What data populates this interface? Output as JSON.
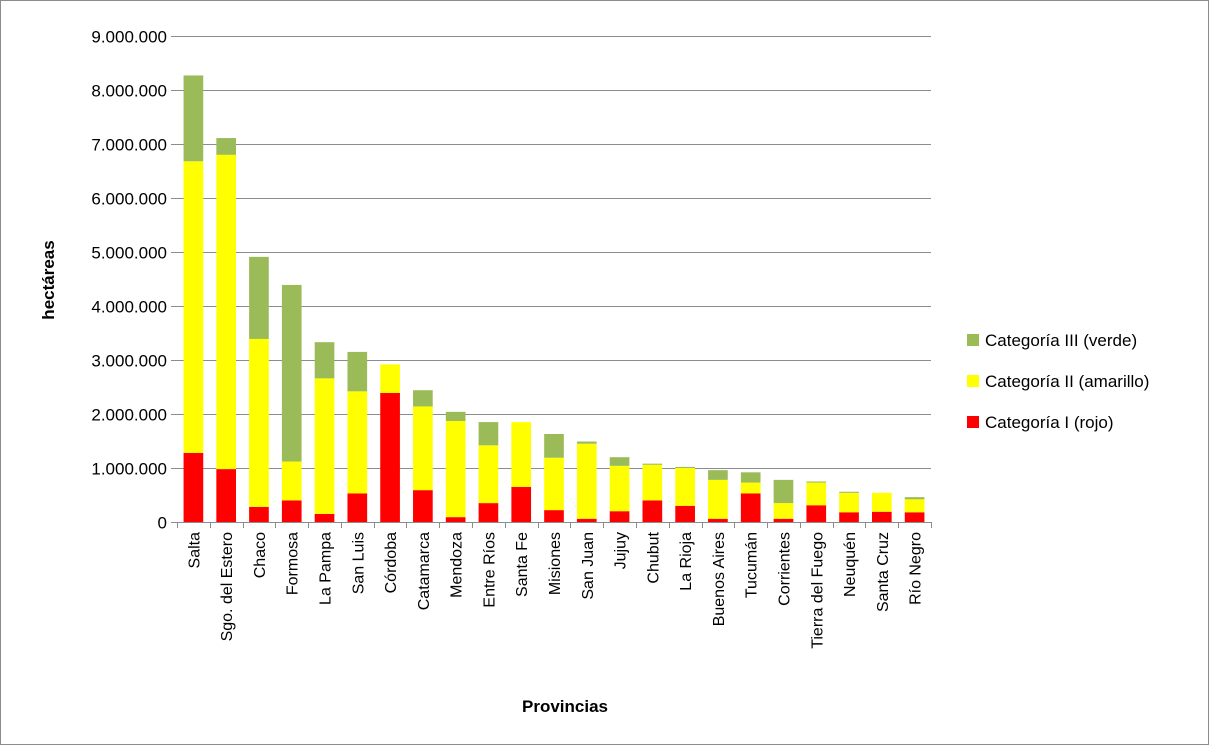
{
  "chart_data": {
    "type": "bar",
    "stacked": true,
    "title": "",
    "xlabel": "Provincias",
    "ylabel": "hectáreas",
    "ylim": [
      0,
      9000000
    ],
    "y_ticks": [
      0,
      1000000,
      2000000,
      3000000,
      4000000,
      5000000,
      6000000,
      7000000,
      8000000,
      9000000
    ],
    "y_tick_labels": [
      "0",
      "1.000.000",
      "2.000.000",
      "3.000.000",
      "4.000.000",
      "5.000.000",
      "6.000.000",
      "7.000.000",
      "8.000.000",
      "9.000.000"
    ],
    "grid": true,
    "legend_position": "right",
    "categories": [
      "Salta",
      "Sgo. del Estero",
      "Chaco",
      "Formosa",
      "La Pampa",
      "San Luis",
      "Córdoba",
      "Catamarca",
      "Mendoza",
      "Entre Ríos",
      "Santa Fe",
      "Misiones",
      "San Juan",
      "Jujuy",
      "Chubut",
      "La Rioja",
      "Buenos Aires",
      "Tucumán",
      "Corrientes",
      "Tierra del Fuego",
      "Neuquén",
      "Santa Cruz",
      "Río Negro"
    ],
    "series": [
      {
        "name": "Categoría I (rojo)",
        "color": "#ff0000",
        "values": [
          1280000,
          980000,
          280000,
          400000,
          150000,
          530000,
          2390000,
          590000,
          90000,
          350000,
          650000,
          220000,
          60000,
          200000,
          400000,
          300000,
          60000,
          530000,
          60000,
          310000,
          180000,
          190000,
          180000
        ]
      },
      {
        "name": "Categoría II (amarillo)",
        "color": "#ffff00",
        "values": [
          5400000,
          5820000,
          3110000,
          720000,
          2510000,
          1890000,
          530000,
          1550000,
          1780000,
          1070000,
          1200000,
          970000,
          1390000,
          840000,
          660000,
          700000,
          720000,
          200000,
          290000,
          420000,
          360000,
          350000,
          240000
        ]
      },
      {
        "name": "Categoría III (verde)",
        "color": "#9bbb59",
        "values": [
          1590000,
          310000,
          1520000,
          3270000,
          670000,
          730000,
          0,
          300000,
          170000,
          430000,
          0,
          440000,
          40000,
          160000,
          20000,
          20000,
          180000,
          190000,
          430000,
          20000,
          20000,
          0,
          40000
        ]
      }
    ],
    "legend_order": [
      "Categoría III (verde)",
      "Categoría II (amarillo)",
      "Categoría I (rojo)"
    ]
  }
}
